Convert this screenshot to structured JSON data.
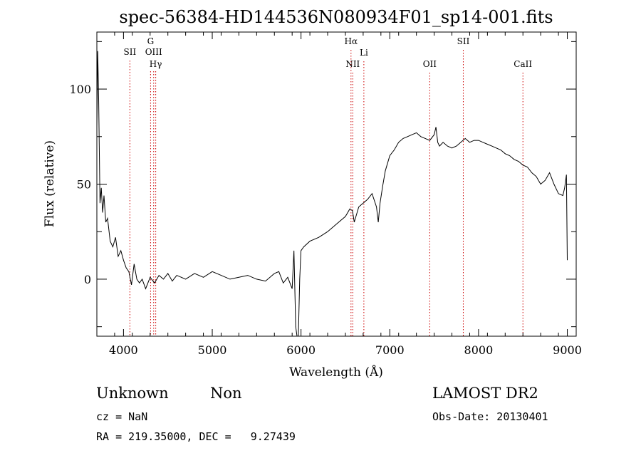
{
  "chart_data": {
    "type": "line",
    "title": "spec-56384-HD144536N080934F01_sp14-001.fits",
    "xlabel": "Wavelength (Å)",
    "ylabel": "Flux (relative)",
    "xlim": [
      3700,
      9100
    ],
    "ylim": [
      -30,
      130
    ],
    "xticks": [
      4000,
      5000,
      6000,
      7000,
      8000,
      9000
    ],
    "yticks": [
      0,
      50,
      100
    ],
    "grid": false,
    "series": [
      {
        "x": [
          3700,
          3710,
          3720,
          3735,
          3750,
          3765,
          3780,
          3800,
          3820,
          3850,
          3880,
          3910,
          3940,
          3970,
          4000,
          4030,
          4060,
          4090,
          4120,
          4150,
          4180,
          4210,
          4250,
          4300,
          4350,
          4400,
          4450,
          4500,
          4550,
          4600,
          4700,
          4800,
          4900,
          5000,
          5100,
          5200,
          5300,
          5400,
          5500,
          5600,
          5700,
          5750,
          5800,
          5850,
          5900,
          5920,
          5940,
          5955,
          5970,
          5985,
          6000,
          6030,
          6100,
          6200,
          6300,
          6400,
          6500,
          6550,
          6580,
          6600,
          6650,
          6700,
          6750,
          6800,
          6850,
          6870,
          6890,
          6920,
          6950,
          7000,
          7050,
          7100,
          7150,
          7200,
          7250,
          7300,
          7350,
          7400,
          7450,
          7500,
          7520,
          7540,
          7560,
          7600,
          7650,
          7700,
          7750,
          7800,
          7850,
          7900,
          7950,
          8000,
          8050,
          8100,
          8150,
          8200,
          8250,
          8300,
          8350,
          8400,
          8450,
          8500,
          8550,
          8600,
          8650,
          8700,
          8750,
          8800,
          8850,
          8900,
          8950,
          8970,
          8990,
          9000
        ],
        "y": [
          80,
          120,
          95,
          40,
          48,
          35,
          44,
          30,
          32,
          20,
          17,
          22,
          12,
          15,
          10,
          6,
          4,
          -3,
          8,
          0,
          -2,
          0,
          -5,
          1,
          -2,
          2,
          0,
          3,
          -1,
          2,
          0,
          3,
          1,
          4,
          2,
          0,
          1,
          2,
          0,
          -1,
          3,
          4,
          -2,
          1,
          -5,
          15,
          -25,
          -30,
          -30,
          0,
          15,
          17,
          20,
          22,
          25,
          29,
          33,
          37,
          36,
          30,
          38,
          40,
          42,
          45,
          38,
          30,
          40,
          49,
          57,
          65,
          68,
          72,
          74,
          75,
          76,
          77,
          75,
          74,
          73,
          76,
          80,
          72,
          70,
          72,
          70,
          69,
          70,
          72,
          74,
          72,
          73,
          73,
          72,
          71,
          70,
          69,
          68,
          66,
          65,
          63,
          62,
          60,
          59,
          56,
          54,
          50,
          52,
          56,
          50,
          45,
          44,
          48,
          55,
          10
        ]
      }
    ],
    "line_annotations": [
      {
        "label": "SII",
        "x": 4072
      },
      {
        "label": "G",
        "x": 4305
      },
      {
        "label": "OIII",
        "x": 4340
      },
      {
        "label": "Hγ",
        "x": 4363
      },
      {
        "label": "Hα",
        "x": 6563
      },
      {
        "label": "NII",
        "x": 6583
      },
      {
        "label": "Li",
        "x": 6708
      },
      {
        "label": "OII",
        "x": 7450
      },
      {
        "label": "SII",
        "x": 7828
      },
      {
        "label": "CaII",
        "x": 8500
      }
    ]
  },
  "info": {
    "class_label": "Unknown",
    "subclass_label": "Non",
    "survey_label": "LAMOST DR2",
    "cz_text": "cz = NaN",
    "obs_date_text": "Obs-Date: 20130401",
    "coords_text": "RA = 219.35000, DEC =   9.27439"
  },
  "colors": {
    "axis": "#000000",
    "spectrum": "#000000",
    "line_marker": "#cc0000"
  }
}
